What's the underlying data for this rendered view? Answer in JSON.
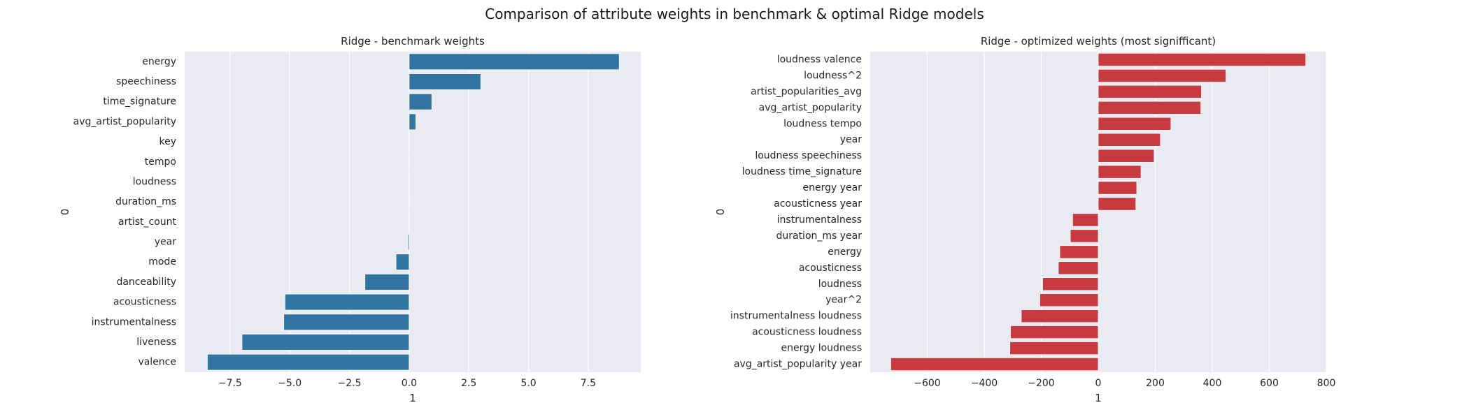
{
  "suptitle": "Comparison of attribute weights in benchmark & optimal Ridge models",
  "colors": {
    "panel_background": "#eaeaf2",
    "grid": "#ffffff",
    "benchmark_bar": "#3274a1",
    "optimized_bar": "#c73a3f"
  },
  "chart_data": [
    {
      "type": "bar",
      "orientation": "horizontal",
      "title": "Ridge - benchmark weights",
      "xlabel": "1",
      "ylabel": "0",
      "xlim": [
        -9.4,
        9.7
      ],
      "xticks": [
        -7.5,
        -5.0,
        -2.5,
        0.0,
        2.5,
        5.0,
        7.5
      ],
      "xtick_labels": [
        "−7.5",
        "−5.0",
        "−2.5",
        "0.0",
        "2.5",
        "5.0",
        "7.5"
      ],
      "grid": "vertical",
      "categories": [
        "energy",
        "speechiness",
        "time_signature",
        "avg_artist_popularity",
        "key",
        "tempo",
        "loudness",
        "duration_ms",
        "artist_count",
        "year",
        "mode",
        "danceability",
        "acousticness",
        "instrumentalness",
        "liveness",
        "valence"
      ],
      "values": [
        8.8,
        3.0,
        0.95,
        0.28,
        0.02,
        0.01,
        0.005,
        -0.005,
        -0.01,
        -0.05,
        -0.55,
        -1.85,
        -5.2,
        -5.25,
        -7.0,
        -8.45
      ]
    },
    {
      "type": "bar",
      "orientation": "horizontal",
      "title": "Ridge - optimized weights (most signifficant)",
      "xlabel": "1",
      "ylabel": "0",
      "xlim": [
        -800,
        800
      ],
      "xticks": [
        -600,
        -400,
        -200,
        0,
        200,
        400,
        600,
        800
      ],
      "xtick_labels": [
        "−600",
        "−400",
        "−200",
        "0",
        "200",
        "400",
        "600",
        "800"
      ],
      "grid": "vertical",
      "categories": [
        "loudness valence",
        "loudness^2",
        "artist_popularities_avg",
        "avg_artist_popularity",
        "loudness tempo",
        "year",
        "loudness speechiness",
        "loudness time_signature",
        "energy year",
        "acousticness year",
        "instrumentalness",
        "duration_ms year",
        "energy",
        "acousticness",
        "loudness",
        "year^2",
        "instrumentalness loudness",
        "acousticness loudness",
        "energy loudness",
        "avg_artist_popularity year"
      ],
      "values": [
        728,
        448,
        362,
        360,
        255,
        218,
        196,
        150,
        135,
        132,
        -90,
        -98,
        -135,
        -140,
        -195,
        -205,
        -270,
        -308,
        -310,
        -728
      ]
    }
  ]
}
